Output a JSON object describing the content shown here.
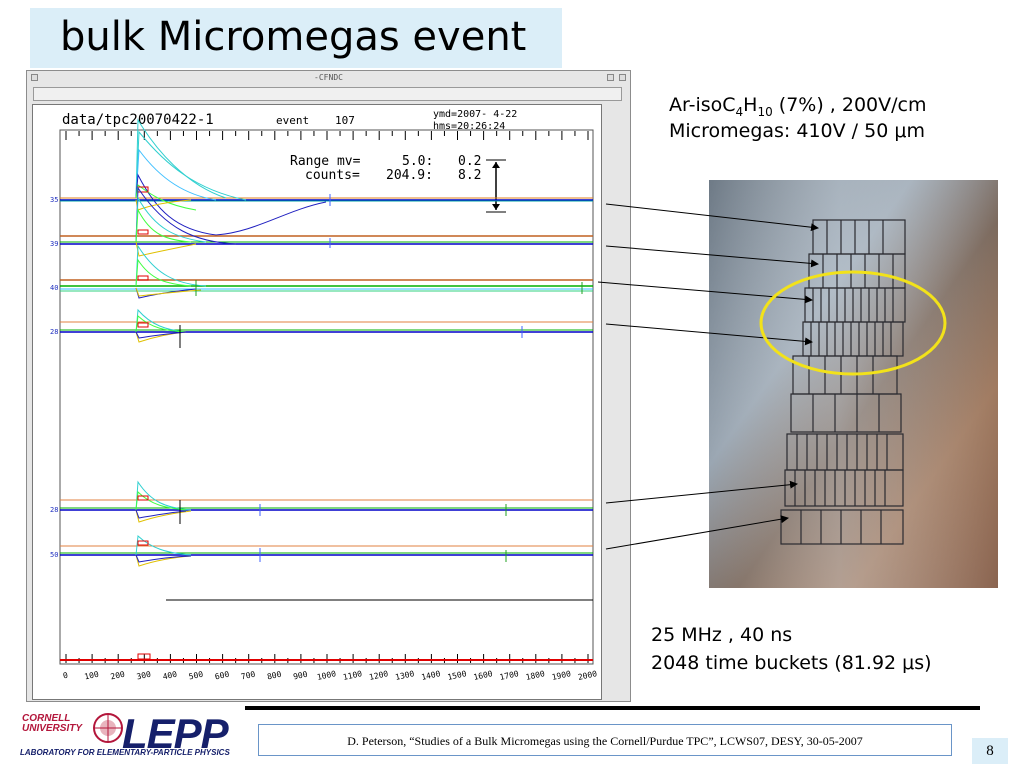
{
  "slide": {
    "title": "bulk Micromegas event",
    "gas_line_prefix": "Ar-isoC",
    "gas_sub1": "4",
    "gas_mid": "H",
    "gas_sub2": "10",
    "gas_suffix": " (7%) , 200V/cm",
    "micromegas_prefix": "Micromegas: 410V / 50 ",
    "micromegas_mu": "μ",
    "micromegas_suffix": "m",
    "freq_line": "25 MHz , 40 ns",
    "buckets_prefix": "2048 time buckets  (81.92 ",
    "buckets_mu": "μ",
    "buckets_suffix": "s)",
    "citation": "D. Peterson, “Studies of a Bulk Micromegas using the Cornell/Purdue TPC”, LCWS07, DESY, 30-05-2007",
    "page_number": "8"
  },
  "window": {
    "title": "-CFNDC"
  },
  "plot": {
    "file_label": "data/tpc20070422-1",
    "event_label": "event",
    "event_number": "107",
    "ymd": "ymd=2007- 4-22",
    "hms": "hms=20:26:24",
    "range_label": "Range mv=",
    "range_val1": "5.0:",
    "range_val2": "0.2",
    "counts_label": "counts=",
    "counts_val1": "204.9:",
    "counts_val2": "8.2",
    "channel_labels": [
      "35",
      "39",
      "40",
      "28",
      "28",
      "50"
    ],
    "x_tick_labels": [
      "0",
      "100",
      "200",
      "300",
      "400",
      "500",
      "600",
      "700",
      "800",
      "900",
      "1000",
      "1100",
      "1200",
      "1300",
      "1400",
      "1500",
      "1600",
      "1700",
      "1800",
      "1900",
      "2000"
    ]
  },
  "logo": {
    "cornell": "CORNELL",
    "university": "UNIVERSITY",
    "lepp": "LEPP",
    "subtitle": "LABORATORY FOR ELEMENTARY-PARTICLE PHYSICS"
  },
  "colors": {
    "title_bg": "#dbeef8",
    "ellipse": "#f2e21a",
    "cite_border": "#6a95c8",
    "lepp": "#16206b",
    "cornell": "#b3163b"
  }
}
